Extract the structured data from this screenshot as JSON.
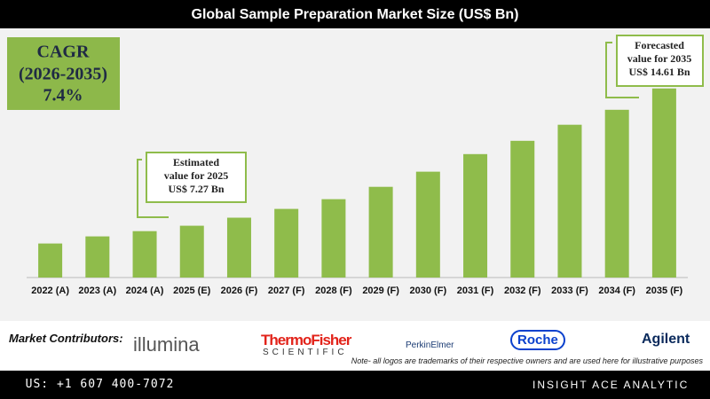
{
  "chart_data": {
    "type": "bar",
    "title": "Global Sample Preparation Market Size (US$ Bn)",
    "categories": [
      "2022 (A)",
      "2023 (A)",
      "2024 (A)",
      "2025 (E)",
      "2026 (F)",
      "2027 (F)",
      "2028 (F)",
      "2029 (F)",
      "2030 (F)",
      "2031 (F)",
      "2032 (F)",
      "2033 (F)",
      "2034 (F)",
      "2035 (F)"
    ],
    "values": [
      6.32,
      6.7,
      6.98,
      7.27,
      7.7,
      8.17,
      8.69,
      9.35,
      10.16,
      11.1,
      11.81,
      12.67,
      13.47,
      14.61
    ],
    "color": "#8fbc4b",
    "ylim": [
      4.5,
      15.5
    ],
    "cagr": {
      "label": "CAGR",
      "period": "(2026-2035)",
      "value": "7.4%"
    },
    "annotations": [
      {
        "lines": [
          "Estimated",
          "value for 2025",
          "US$ 7.27 Bn"
        ]
      },
      {
        "lines": [
          "Forecasted",
          "value for 2035",
          "US$ 14.61 Bn"
        ]
      }
    ]
  },
  "contributors": {
    "label": "Market Contributors:",
    "logos": [
      "illumina",
      "ThermoFisher",
      "SCIENTIFIC",
      "PerkinElmer",
      "Roche",
      "Agilent"
    ],
    "note": "Note- all logos are trademarks of their respective owners and are used here for illustrative purposes"
  },
  "footer": {
    "phone": "US: +1 607 400-7072",
    "brand": "INSIGHT ACE ANALYTIC"
  }
}
